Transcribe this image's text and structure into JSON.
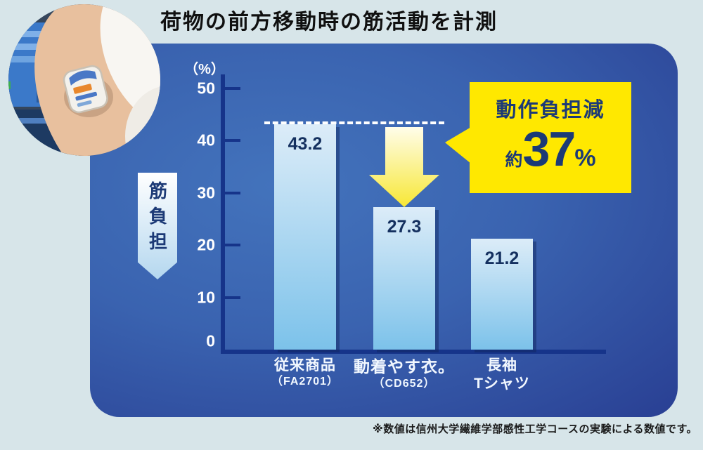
{
  "title": "荷物の前方移動時の筋活動を計測",
  "ribbon": {
    "label": "筋負担"
  },
  "chart_data": {
    "type": "bar",
    "title": "荷物の前方移動時の筋活動を計測",
    "unit_label": "（%）",
    "ylabel": "筋負担",
    "ylim": [
      0,
      50
    ],
    "yticks": [
      0,
      10,
      20,
      30,
      40,
      50
    ],
    "grid": false,
    "categories": [
      {
        "label": "従来商品",
        "sublabel": "（FA2701）",
        "value": 43.2,
        "emphasis": false
      },
      {
        "label": "動着やす衣。",
        "sublabel": "（CD652）",
        "value": 27.3,
        "emphasis": true
      },
      {
        "label": "長袖",
        "sublabel": "Tシャツ",
        "value": 21.2,
        "emphasis": false
      }
    ],
    "reference_line": {
      "value": 43.2,
      "style": "dashed-white"
    },
    "annotation": {
      "prefix": "動作負担減",
      "approx": "約",
      "number": "37",
      "suffix": "%"
    }
  },
  "footnote": "※数値は信州大学繊維学部感性工学コースの実験による数値です。",
  "colors": {
    "background": "#d7e5e9",
    "title_color": "#101010",
    "panel_center": "#4373bc",
    "panel_edge": "#293f93",
    "axis": "#16348a",
    "tick_label": "#ffffff",
    "bar_top": "#dcecf8",
    "bar_bottom": "#7cc2ea",
    "bar_label": "#14305f",
    "callout_bg": "#ffe800",
    "callout_text": "#1c3a76",
    "arrow_top": "#fffdea",
    "arrow_bottom": "#f7e735",
    "ribbon_top": "#ffffff",
    "ribbon_bottom": "#b4d7ef"
  }
}
